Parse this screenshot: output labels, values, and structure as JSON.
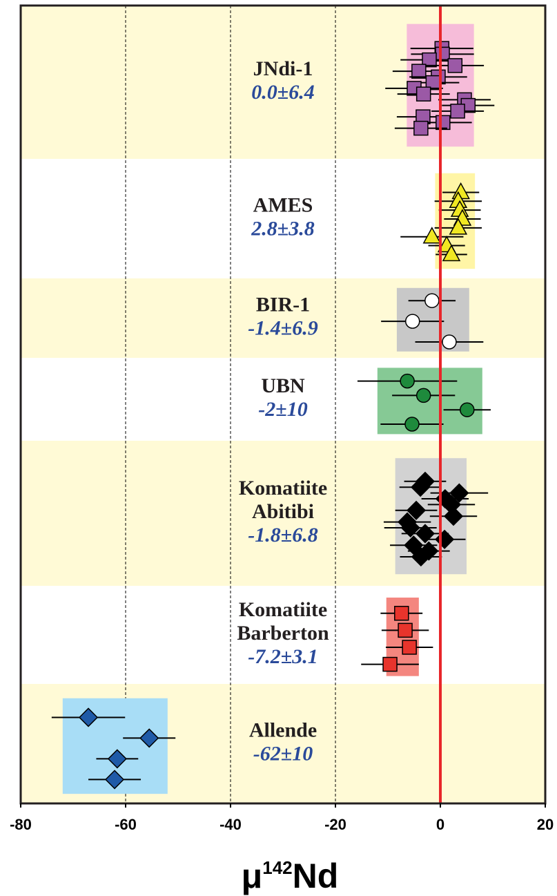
{
  "chart_data": {
    "type": "scatter",
    "xlim": [
      -80,
      20
    ],
    "xticks": [
      -80,
      -60,
      -40,
      -20,
      0,
      20
    ],
    "grid": true,
    "reference_line": 0,
    "reference_color": "#e8262a",
    "band_colors": [
      "#fffad6",
      "#ffffff"
    ],
    "xlabel": {
      "prefix": "μ",
      "sup": "142",
      "suffix": "Nd"
    },
    "groups": [
      {
        "name": [
          "JNdi-1"
        ],
        "stat_label": "0.0±6.4",
        "mean": 0,
        "sd": 6.4,
        "marker": "square",
        "color": "#9b59a6",
        "box_color": "#f6bcd9",
        "values": [
          0.3,
          0.4,
          -2.1,
          2.8,
          -4.1,
          -0.4,
          -1.4,
          -5,
          -3.2,
          4.6,
          5.3,
          3.3,
          -3.3,
          0.5,
          -3.7
        ],
        "errors": [
          6,
          6,
          5.5,
          5.5,
          5,
          5.5,
          5,
          5.5,
          5,
          5,
          5,
          5,
          5,
          5.5,
          5
        ]
      },
      {
        "name": [
          "AMES"
        ],
        "stat_label": "2.8±3.8",
        "mean": 2.8,
        "sd": 3.8,
        "marker": "triangle",
        "color": "#f0e822",
        "box_color": "#fff5a6",
        "values": [
          3.9,
          3.4,
          3.7,
          4.2,
          3.4,
          -1.6,
          1.2,
          2.1
        ],
        "errors": [
          3.5,
          4.5,
          4,
          3.5,
          4.5,
          6,
          3.5,
          3
        ]
      },
      {
        "name": [
          "BIR-1"
        ],
        "stat_label": "-1.4±6.9",
        "mean": -1.4,
        "sd": 6.9,
        "marker": "circle",
        "color": "#ffffff",
        "box_color": "#c8c8c8",
        "values": [
          -1.6,
          -5.3,
          1.7
        ],
        "errors": [
          4.5,
          6,
          6.5
        ]
      },
      {
        "name": [
          "UBN"
        ],
        "stat_label": "-2±10",
        "mean": -2,
        "sd": 10,
        "marker": "circle",
        "color": "#1e8a3c",
        "box_color": "#86c995",
        "values": [
          -6.3,
          -3.2,
          5.1,
          -5.4
        ],
        "errors": [
          9.5,
          6,
          4.5,
          6
        ]
      },
      {
        "name": [
          "Komatiite",
          "Abitibi"
        ],
        "stat_label": "-1.8±6.8",
        "mean": -1.8,
        "sd": 6.8,
        "marker": "diamond",
        "color": "#000000",
        "box_color": "#d2d2d2",
        "values": [
          -2.9,
          -3.8,
          3.6,
          0.9,
          2.1,
          -4.6,
          2.5,
          -6.3,
          -5.7,
          -2.9,
          0.8,
          -5.1,
          -2.2,
          -3.7
        ],
        "errors": [
          4,
          4,
          5.5,
          4.5,
          4.5,
          4,
          4.5,
          4.5,
          5,
          4.5,
          4,
          4.5,
          4,
          4
        ]
      },
      {
        "name": [
          "Komatiite",
          "Barberton"
        ],
        "stat_label": "-7.2±3.1",
        "mean": -7.2,
        "sd": 3.1,
        "marker": "square",
        "color": "#e8342c",
        "box_color": "#f4867f",
        "values": [
          -7.4,
          -6.7,
          -5.9,
          -9.6
        ],
        "errors": [
          4,
          4.5,
          4.5,
          5.5
        ]
      },
      {
        "name": [
          "Allende"
        ],
        "stat_label": "-62±10",
        "mean": -62,
        "sd": 10,
        "marker": "diamond",
        "color": "#1f5aa8",
        "box_color": "#a8ddf6",
        "values": [
          -67.1,
          -55.5,
          -61.6,
          -62.1
        ],
        "errors": [
          7,
          5,
          4,
          5
        ]
      }
    ]
  }
}
